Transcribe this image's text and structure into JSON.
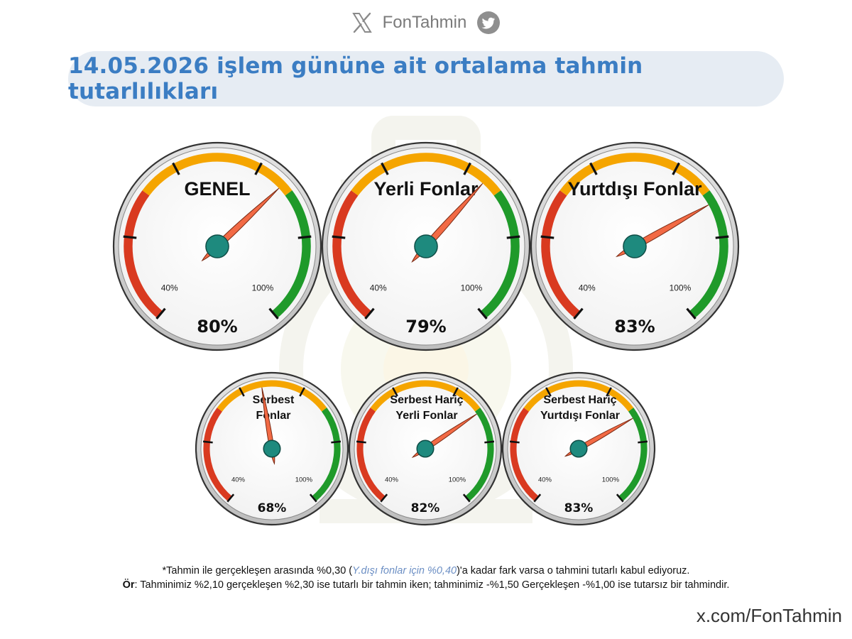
{
  "header": {
    "brand_name": "FonTahmin",
    "x_logo_icon": "x-logo-icon",
    "bird_icon": "twitter-bird-icon"
  },
  "title": "14.05.2026 işlem gününe ait ortalama tahmin tutarlılıkları",
  "colors": {
    "title": "#3b7dc3",
    "red": "#d93a20",
    "orange": "#f5a500",
    "green": "#1f9a2a",
    "needle": "#f26a45",
    "hub": "#1e8a7e"
  },
  "chart_data": [
    {
      "type": "gauge",
      "title": "GENEL",
      "value": 80,
      "value_label": "80%",
      "min_label": "40%",
      "max_label": "100%",
      "range": [
        40,
        100
      ]
    },
    {
      "type": "gauge",
      "title": "Yerli Fonlar",
      "value": 79,
      "value_label": "79%",
      "min_label": "40%",
      "max_label": "100%",
      "range": [
        40,
        100
      ]
    },
    {
      "type": "gauge",
      "title": "Yurtdışı Fonlar",
      "value": 83,
      "value_label": "83%",
      "min_label": "40%",
      "max_label": "100%",
      "range": [
        40,
        100
      ]
    },
    {
      "type": "gauge",
      "title_lines": [
        "Serbest",
        "Fonlar"
      ],
      "value": 68,
      "value_label": "68%",
      "min_label": "40%",
      "max_label": "100%",
      "range": [
        40,
        100
      ]
    },
    {
      "type": "gauge",
      "title_lines": [
        "Serbest Hariç",
        "Yerli Fonlar"
      ],
      "value": 82,
      "value_label": "82%",
      "min_label": "40%",
      "max_label": "100%",
      "range": [
        40,
        100
      ]
    },
    {
      "type": "gauge",
      "title_lines": [
        "Serbest Hariç",
        "Yurtdışı  Fonlar"
      ],
      "value": 83,
      "value_label": "83%",
      "min_label": "40%",
      "max_label": "100%",
      "range": [
        40,
        100
      ]
    }
  ],
  "footnote": {
    "line1_pre": "*Tahmin ile gerçekleşen arasında %0,30 (",
    "line1_italic": "Y.dışı fonlar için %0,40",
    "line1_post": ")'a kadar fark varsa o tahmini tutarlı kabul ediyoruz.",
    "line2_bold": "Ör",
    "line2_rest": ": Tahminimiz %2,10 gerçekleşen %2,30 ise tutarlı bir tahmin iken; tahminimiz -%1,50 Gerçekleşen -%1,00 ise tutarsız bir tahmindir."
  },
  "site": "x.com/FonTahmin"
}
